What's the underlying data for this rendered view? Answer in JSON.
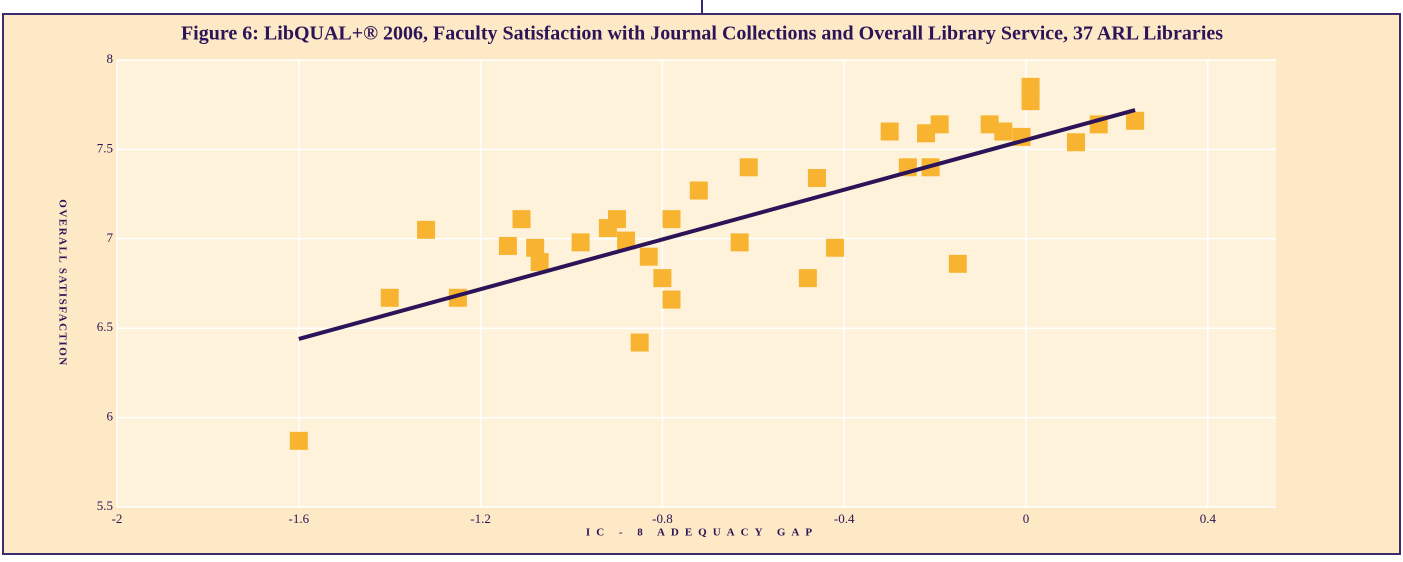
{
  "chart_data": {
    "type": "scatter",
    "title": "Figure 6:  LibQUAL+® 2006, Faculty Satisfaction with Journal Collections and Overall Library Service, 37 ARL Libraries",
    "x_label": "IC - 8 ADEQUACY GAP",
    "y_label": "OVERALL SATISFACTION",
    "xlim": [
      -2,
      0.55
    ],
    "ylim": [
      5.5,
      8
    ],
    "xticks": [
      -2,
      -1.6,
      -1.2,
      -0.8,
      -0.4,
      0,
      0.4
    ],
    "yticks": [
      5.5,
      6,
      6.5,
      7,
      7.5,
      8
    ],
    "grid": true,
    "points": {
      "color": "#f8b431",
      "x": [
        -1.6,
        -1.4,
        -1.32,
        -1.25,
        -1.14,
        -1.11,
        -1.08,
        -1.07,
        -0.98,
        -0.92,
        -0.9,
        -0.88,
        -0.85,
        -0.83,
        -0.8,
        -0.78,
        -0.78,
        -0.72,
        -0.63,
        -0.61,
        -0.48,
        -0.46,
        -0.42,
        -0.26,
        -0.22,
        -0.21,
        -0.19,
        -0.15,
        -0.08,
        -0.05,
        0.01,
        0.01,
        -0.01,
        0.11,
        0.16,
        0.24,
        -0.3
      ],
      "y": [
        5.87,
        6.67,
        7.05,
        6.67,
        6.96,
        7.11,
        6.95,
        6.87,
        6.98,
        7.06,
        7.11,
        6.99,
        6.42,
        6.9,
        6.78,
        6.66,
        7.11,
        7.27,
        6.98,
        7.4,
        6.78,
        7.34,
        6.95,
        7.4,
        7.59,
        7.4,
        7.64,
        6.86,
        7.64,
        7.6,
        7.85,
        7.77,
        7.57,
        7.54,
        7.64,
        7.66,
        7.6
      ]
    },
    "trend_line": {
      "color": "#2b1457",
      "x": [
        -1.6,
        0.24
      ],
      "y": [
        6.44,
        7.72
      ]
    }
  }
}
